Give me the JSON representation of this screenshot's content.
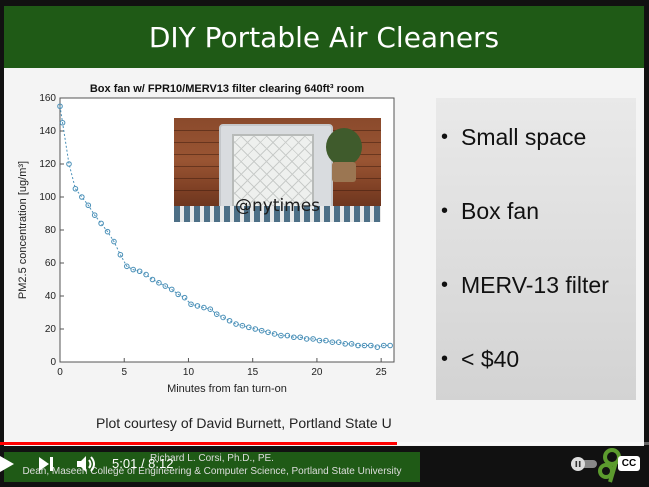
{
  "slide": {
    "title": "DIY Portable Air Cleaners",
    "photo_watermark": "@nytimes",
    "bullets": [
      "Small space",
      "Box fan",
      "MERV-13 filter",
      "< $40"
    ],
    "credit": "Plot courtesy of David Burnett, Portland State U"
  },
  "chart_data": {
    "type": "line",
    "title": "Box fan w/ FPR10/MERV13 filter clearing 640ft³ room",
    "xlabel": "Minutes from fan turn-on",
    "ylabel": "PM2.5 concentration [ug/m³]",
    "xlim": [
      0,
      26
    ],
    "ylim": [
      0,
      160
    ],
    "x_ticks": [
      0,
      5,
      10,
      15,
      20,
      25
    ],
    "y_ticks": [
      0,
      20,
      40,
      60,
      80,
      100,
      120,
      140,
      160
    ],
    "grid": false,
    "series": [
      {
        "color": "#4a90b8",
        "x": [
          0,
          0.2,
          0.7,
          1.2,
          1.7,
          2.2,
          2.7,
          3.2,
          3.7,
          4.2,
          4.7,
          5.2,
          5.7,
          6.2,
          6.7,
          7.2,
          7.7,
          8.2,
          8.7,
          9.2,
          9.7,
          10.2,
          10.7,
          11.2,
          11.7,
          12.2,
          12.7,
          13.2,
          13.7,
          14.2,
          14.7,
          15.2,
          15.7,
          16.2,
          16.7,
          17.2,
          17.7,
          18.2,
          18.7,
          19.2,
          19.7,
          20.2,
          20.7,
          21.2,
          21.7,
          22.2,
          22.7,
          23.2,
          23.7,
          24.2,
          24.7,
          25.2,
          25.7
        ],
        "y": [
          155,
          145,
          120,
          105,
          100,
          95,
          89,
          84,
          79,
          73,
          65,
          58,
          56,
          55,
          53,
          50,
          48,
          46,
          44,
          41,
          39,
          35,
          34,
          33,
          32,
          29,
          27,
          25,
          23,
          22,
          21,
          20,
          19,
          18,
          17,
          16,
          16,
          15,
          15,
          14,
          14,
          13,
          13,
          12,
          12,
          11,
          11,
          10,
          10,
          10,
          9,
          10,
          10
        ]
      }
    ]
  },
  "speaker": {
    "name": "Richard L. Corsi, Ph.D., PE.",
    "role": "Dean, Maseeh College of Engineering & Computer Science, Portland State University"
  },
  "player": {
    "current_time": "5:01",
    "duration": "8:12",
    "progress": 0.611,
    "cc_label": "CC",
    "accent_color": "#ff0000"
  }
}
